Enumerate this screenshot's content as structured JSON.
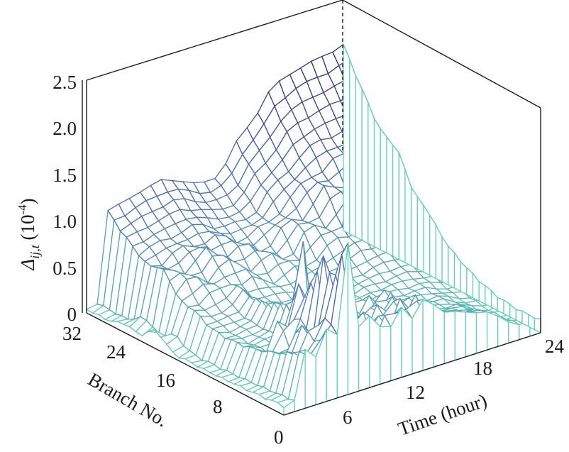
{
  "chart_data": {
    "type": "surface3d",
    "title": "",
    "zlabel_prefix": "Δ",
    "zlabel_sub": "ij,t",
    "zlabel_unit_open": " (10",
    "zlabel_unit_exp": "-4",
    "zlabel_unit_close": ")",
    "xlabel": "Time (hour)",
    "ylabel": "Branch No.",
    "xlim": [
      0,
      24
    ],
    "ylim": [
      0,
      32
    ],
    "zlim": [
      0,
      2.5
    ],
    "x_ticks": [
      "0",
      "6",
      "12",
      "18",
      "24"
    ],
    "y_ticks": [
      "8",
      "16",
      "24",
      "32"
    ],
    "z_ticks": [
      "0",
      "0.5",
      "1.0",
      "1.5",
      "2.0",
      "2.5"
    ],
    "grid": false,
    "colors": {
      "low": "#5fd3b3",
      "mid": "#4a6fb5",
      "high": "#2b2a7a",
      "accent": "#d4a640"
    },
    "branch_32_series": [
      0.02,
      0.05,
      1.0,
      1.03,
      1.07,
      1.1,
      1.12,
      1.15,
      1.12,
      1.06,
      1.0,
      0.98,
      1.0,
      1.1,
      1.3,
      1.42,
      1.55,
      1.72,
      1.8,
      1.85,
      1.88,
      1.9,
      1.92,
      1.95,
      1.98
    ],
    "branch_0_series": [
      0.08,
      0.1,
      0.6,
      0.5,
      0.55,
      0.6,
      1.35,
      0.6,
      0.55,
      0.4,
      0.45,
      0.5,
      0.55,
      0.5,
      0.5,
      0.55,
      0.5,
      0.45,
      0.42,
      0.4,
      0.3,
      0.2,
      0.15,
      0.15,
      0.12
    ],
    "peaks": [
      {
        "time": 6,
        "branch": 4,
        "value": 1.35
      },
      {
        "time": 7,
        "branch": 9,
        "value": 1.3
      },
      {
        "time": 18,
        "branch": 20,
        "value": 1.55
      },
      {
        "time": 9,
        "branch": 6,
        "value": 1.2
      }
    ]
  }
}
